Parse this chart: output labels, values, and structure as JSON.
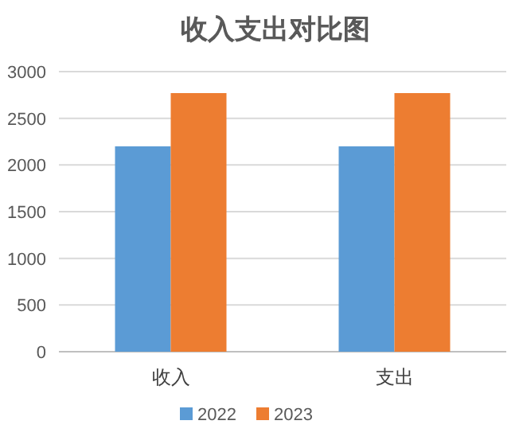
{
  "chart_data": {
    "type": "bar",
    "title": "收入支出对比图",
    "categories": [
      "收入",
      "支出"
    ],
    "series": [
      {
        "name": "2022",
        "color": "#5b9bd5",
        "values": [
          2200,
          2200
        ]
      },
      {
        "name": "2023",
        "color": "#ed7d31",
        "values": [
          2770,
          2770
        ]
      }
    ],
    "ylim": [
      0,
      3000
    ],
    "yticks": [
      0,
      500,
      1000,
      1500,
      2000,
      2500,
      3000
    ],
    "grid": "y",
    "legend": "bottom"
  }
}
